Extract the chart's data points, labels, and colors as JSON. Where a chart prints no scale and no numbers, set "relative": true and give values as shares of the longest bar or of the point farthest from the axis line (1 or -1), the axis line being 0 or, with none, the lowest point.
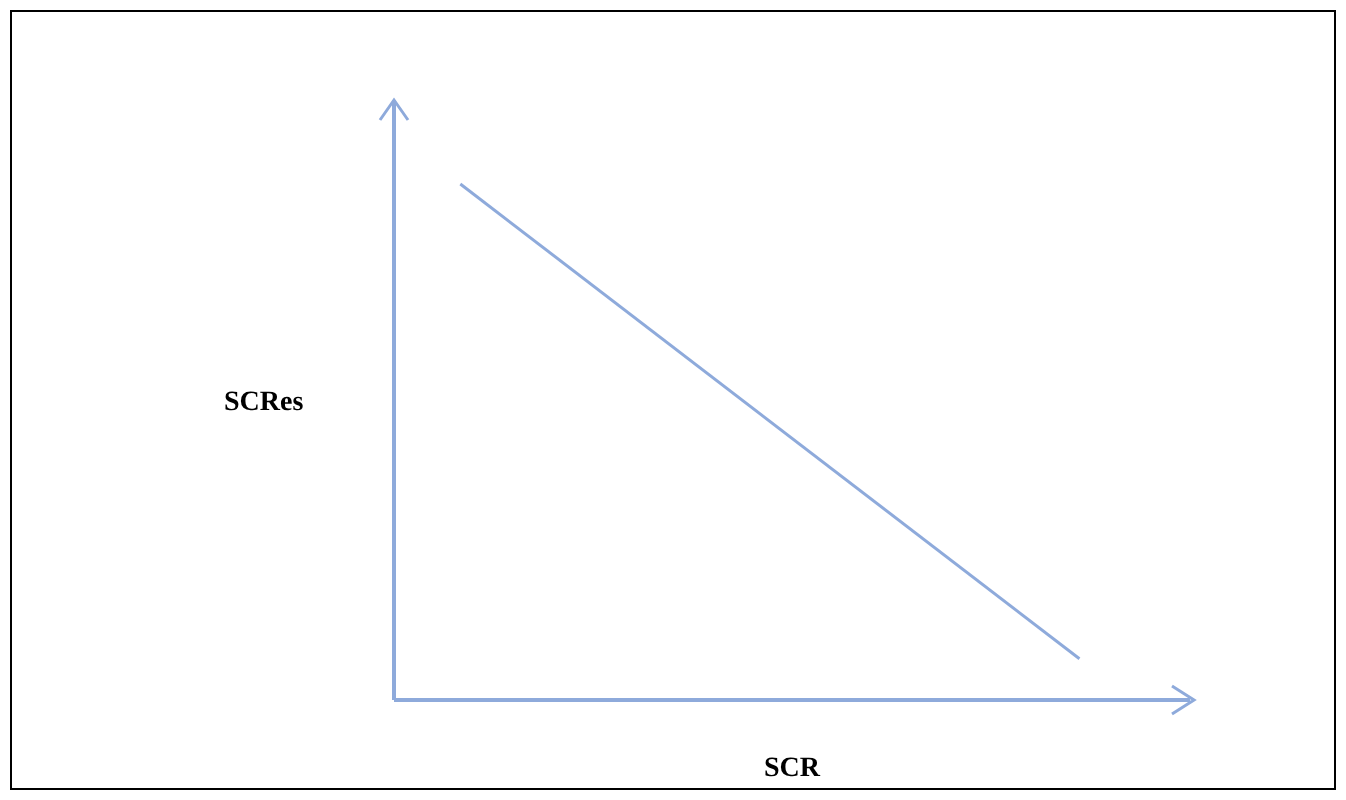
{
  "chart_data": {
    "type": "line",
    "xlabel": "SCR",
    "ylabel": "SCRes",
    "categories": [
      null,
      null,
      null,
      null,
      null,
      null,
      null,
      null,
      null,
      null,
      null,
      null,
      null,
      null,
      null,
      null,
      null,
      null,
      null,
      null,
      null,
      null,
      null,
      null,
      null,
      null,
      null,
      null,
      null,
      null,
      null,
      null,
      null,
      null,
      null,
      null,
      null
    ],
    "relative": true,
    "series": [
      {
        "color": "#8eaadb",
        "values": [
          null,
          null,
          null,
          1,
          null,
          null,
          null,
          null,
          null,
          null,
          null,
          null,
          null,
          null,
          null,
          null,
          null,
          null,
          null,
          null,
          null,
          null,
          null,
          null,
          null,
          null,
          null,
          null,
          null,
          null,
          null,
          0.08,
          null,
          null,
          null,
          null,
          null
        ]
      }
    ]
  }
}
